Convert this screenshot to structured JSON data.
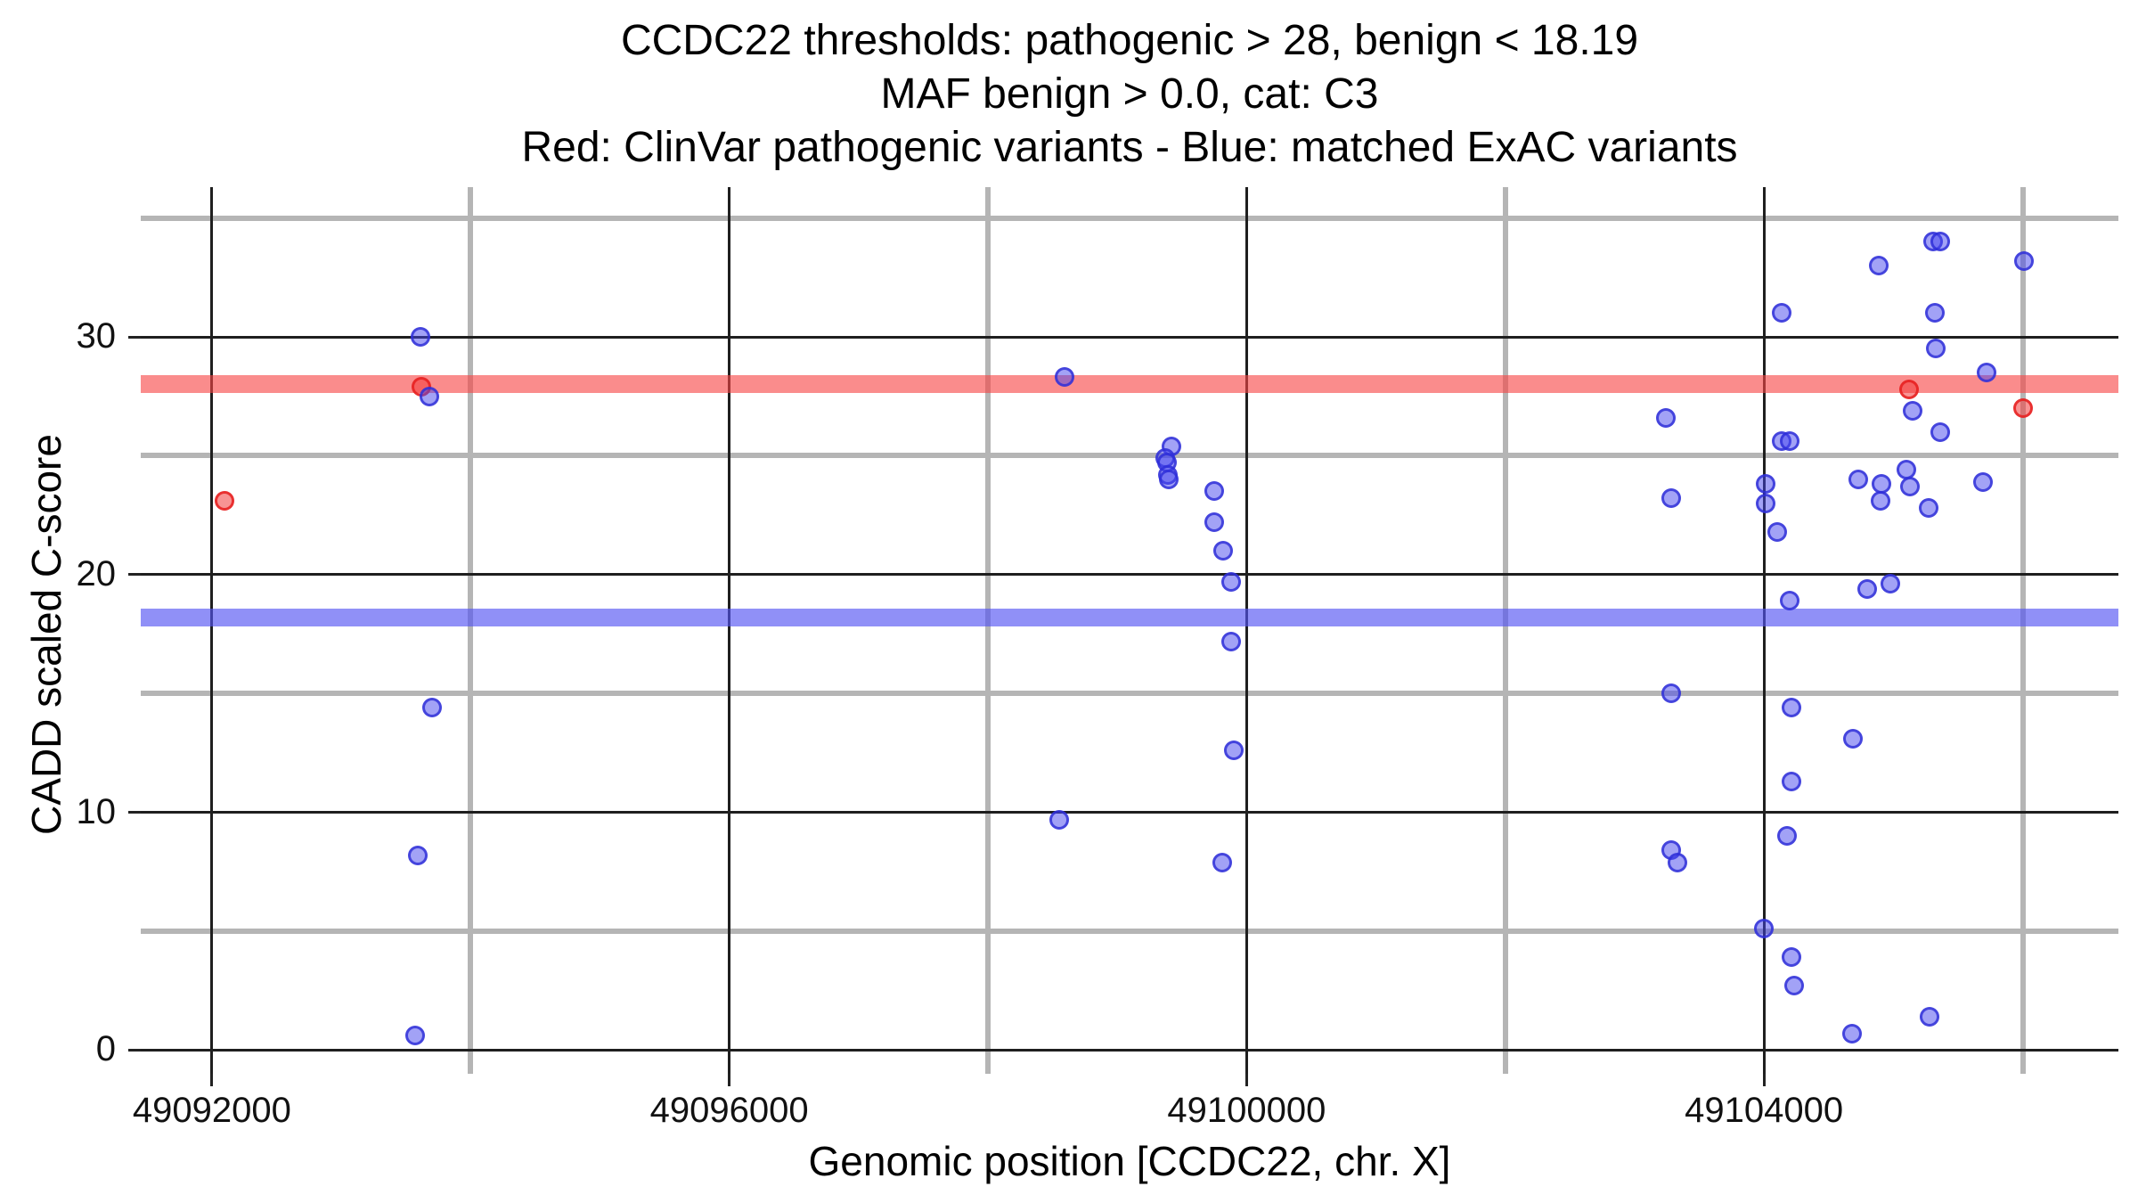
{
  "title": {
    "line1": "CCDC22 thresholds: pathogenic > 28, benign < 18.19",
    "line2": "MAF benign > 0.0, cat: C3",
    "line3": "Red: ClinVar pathogenic variants - Blue: matched ExAC variants"
  },
  "x_axis": {
    "label": "Genomic position [CCDC22, chr. X]",
    "major_ticks": [
      49092000,
      49096000,
      49100000,
      49104000
    ],
    "minor_ticks": [
      49094000,
      49098000,
      49102000,
      49106000
    ],
    "domain": [
      49091450,
      49106740
    ]
  },
  "y_axis": {
    "label": "CADD scaled C-score",
    "major_ticks": [
      0,
      10,
      20,
      30
    ],
    "minor_ticks": [
      5,
      15,
      25,
      35
    ],
    "domain": [
      -1.0,
      36.3
    ]
  },
  "colors": {
    "background": "#ffffff",
    "major_grid": "#1f1f1f",
    "minor_grid": "#b5b5b5",
    "pathogenic_band": "rgba(247,70,70,0.62)",
    "benign_band": "rgba(85,85,242,0.65)",
    "red_point_fill": "rgba(242,60,60,0.55)",
    "red_point_stroke": "rgba(230,30,30,0.85)",
    "blue_point_fill": "rgba(70,70,238,0.5)",
    "blue_point_stroke": "rgba(45,45,215,0.8)",
    "text": "#000000"
  },
  "chart_data": {
    "type": "scatter",
    "title": "CCDC22 thresholds: pathogenic > 28, benign < 18.19 | MAF benign > 0.0, cat: C3 | Red: ClinVar pathogenic variants - Blue: matched ExAC variants",
    "xlabel": "Genomic position [CCDC22, chr. X]",
    "ylabel": "CADD scaled C-score",
    "xlim": [
      49091450,
      49106740
    ],
    "ylim": [
      -1.0,
      36.3
    ],
    "grid": "on",
    "legend_position": "none",
    "hlines": [
      {
        "name": "pathogenic-threshold",
        "y": 28.0,
        "color_key": "pathogenic_band"
      },
      {
        "name": "benign-threshold",
        "y": 18.19,
        "color_key": "benign_band"
      }
    ],
    "series": [
      {
        "name": "ClinVar pathogenic variants",
        "color_key": "red",
        "points": [
          [
            49092100,
            23.1
          ],
          [
            49093620,
            27.9
          ],
          [
            49105120,
            27.8
          ],
          [
            49106000,
            27.0
          ]
        ]
      },
      {
        "name": "matched ExAC variants",
        "color_key": "blue",
        "points": [
          [
            49093610,
            30.0
          ],
          [
            49093680,
            27.5
          ],
          [
            49093700,
            14.4
          ],
          [
            49093590,
            8.2
          ],
          [
            49093570,
            0.6
          ],
          [
            49098590,
            28.3
          ],
          [
            49098550,
            9.7
          ],
          [
            49099420,
            25.4
          ],
          [
            49099370,
            24.9
          ],
          [
            49099385,
            24.7
          ],
          [
            49099390,
            24.2
          ],
          [
            49099400,
            24.0
          ],
          [
            49099750,
            23.5
          ],
          [
            49099750,
            22.2
          ],
          [
            49099820,
            21.0
          ],
          [
            49099880,
            19.7
          ],
          [
            49099880,
            17.2
          ],
          [
            49099900,
            12.6
          ],
          [
            49099810,
            7.9
          ],
          [
            49104140,
            31.0
          ],
          [
            49103240,
            26.6
          ],
          [
            49104140,
            25.6
          ],
          [
            49104200,
            25.6
          ],
          [
            49104010,
            23.8
          ],
          [
            49104010,
            23.0
          ],
          [
            49104100,
            21.8
          ],
          [
            49103280,
            23.2
          ],
          [
            49104200,
            18.9
          ],
          [
            49103280,
            15.0
          ],
          [
            49104210,
            14.4
          ],
          [
            49104210,
            11.3
          ],
          [
            49104180,
            9.0
          ],
          [
            49103280,
            8.4
          ],
          [
            49103330,
            7.9
          ],
          [
            49104000,
            5.1
          ],
          [
            49104210,
            3.9
          ],
          [
            49104230,
            2.7
          ],
          [
            49105310,
            34.0
          ],
          [
            49105360,
            34.0
          ],
          [
            49104890,
            33.0
          ],
          [
            49106010,
            33.2
          ],
          [
            49105320,
            31.0
          ],
          [
            49105330,
            29.5
          ],
          [
            49105720,
            28.5
          ],
          [
            49105150,
            26.9
          ],
          [
            49105360,
            26.0
          ],
          [
            49104730,
            24.0
          ],
          [
            49104910,
            23.8
          ],
          [
            49105100,
            24.4
          ],
          [
            49105130,
            23.7
          ],
          [
            49104900,
            23.1
          ],
          [
            49105270,
            22.8
          ],
          [
            49105690,
            23.9
          ],
          [
            49104800,
            19.4
          ],
          [
            49104980,
            19.6
          ],
          [
            49104690,
            13.1
          ],
          [
            49105280,
            1.4
          ],
          [
            49104680,
            0.7
          ]
        ]
      }
    ]
  }
}
